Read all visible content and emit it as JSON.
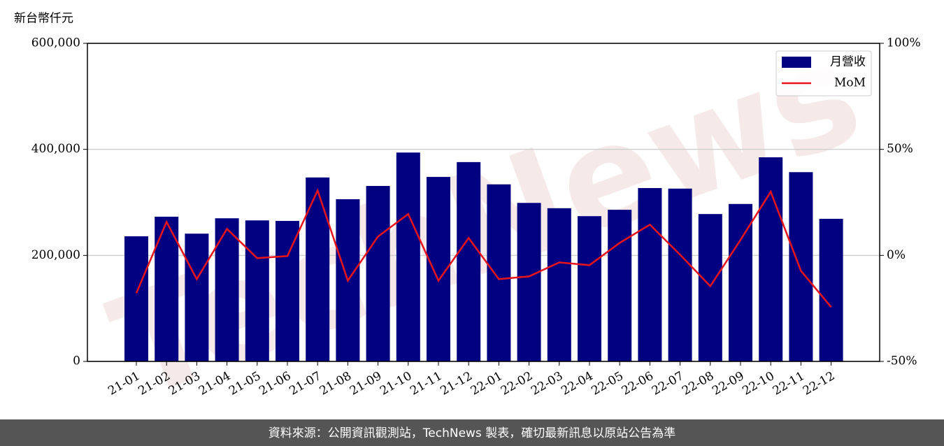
{
  "chart_data": {
    "type": "bar",
    "y_label": "新台幣仟元",
    "categories": [
      "21-01",
      "21-02",
      "21-03",
      "21-04",
      "21-05",
      "21-06",
      "21-07",
      "21-08",
      "21-09",
      "21-10",
      "21-11",
      "21-12",
      "22-01",
      "22-02",
      "22-03",
      "22-04",
      "22-05",
      "22-06",
      "22-07",
      "22-08",
      "22-09",
      "22-10",
      "22-11",
      "22-12"
    ],
    "series": [
      {
        "name": "月營收",
        "type": "bar",
        "color": "#000080",
        "values": [
          236000,
          273000,
          241000,
          270000,
          266000,
          265000,
          347000,
          306000,
          331000,
          394000,
          348000,
          376000,
          334000,
          299000,
          289000,
          274000,
          286000,
          327000,
          326000,
          278000,
          297000,
          385000,
          357000,
          269000
        ]
      },
      {
        "name": "MoM",
        "type": "line",
        "axis": "y2",
        "color": "#e8141c",
        "values": [
          -17.8,
          15.8,
          -11.2,
          12.5,
          -1.3,
          -0.3,
          30.6,
          -11.9,
          8.9,
          19.5,
          -11.9,
          8.2,
          -11.2,
          -9.9,
          -3.3,
          -4.6,
          5.9,
          14.5,
          0.3,
          -14.5,
          7.3,
          30.0,
          -7.3,
          -24.4
        ]
      }
    ],
    "ylim": [
      0,
      600000
    ],
    "yticks": [
      0,
      {
        "value": 200000,
        "label": "200,000"
      },
      {
        "value": 400000,
        "label": "400,000"
      },
      {
        "value": 600000,
        "label": "600,000"
      }
    ],
    "y2lim": [
      -50,
      100
    ],
    "y2ticks": [
      {
        "value": -50,
        "label": "-50%"
      },
      {
        "value": 0,
        "label": "0%"
      },
      {
        "value": 50,
        "label": "50%"
      },
      {
        "value": 100,
        "label": "100%"
      }
    ],
    "grid": true,
    "legend": "upper right",
    "watermark": "TechNews",
    "footer": "資料來源：公開資訊觀測站，TechNews 製表，確切最新訊息以原站公告為準"
  }
}
